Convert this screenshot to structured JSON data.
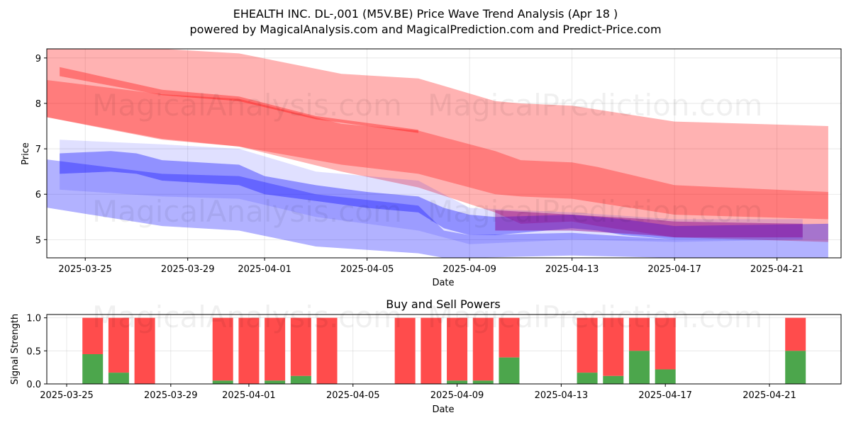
{
  "chart_data": [
    {
      "type": "area",
      "title": "EHEALTH INC.  DL-,001 (M5V.BE) Price Wave Trend Analysis (Apr 18 )",
      "subtitle": "powered by MagicalAnalysis.com and MagicalPrediction.com and Predict-Price.com",
      "xlabel": "Date",
      "ylabel": "Price",
      "xlim": [
        "2025-03-23T12:00",
        "2025-04-23T12:00"
      ],
      "ylim": [
        4.6,
        9.2
      ],
      "x_ticks": [
        "2025-03-25",
        "2025-03-29",
        "2025-04-01",
        "2025-04-05",
        "2025-04-09",
        "2025-04-13",
        "2025-04-17",
        "2025-04-21"
      ],
      "y_ticks": [
        5,
        6,
        7,
        8,
        9
      ],
      "grid": true,
      "series": [
        {
          "name": "red upper band",
          "color": "#ff0000",
          "x": [
            "2025-03-23",
            "2025-03-28",
            "2025-03-31",
            "2025-04-04",
            "2025-04-07",
            "2025-04-10",
            "2025-04-11",
            "2025-04-13",
            "2025-04-17",
            "2025-04-23"
          ],
          "low": [
            7.75,
            7.2,
            7.05,
            6.65,
            6.45,
            6.0,
            5.95,
            5.9,
            5.55,
            5.45
          ],
          "high": [
            9.25,
            9.2,
            9.1,
            8.65,
            8.55,
            8.05,
            8.0,
            7.95,
            7.6,
            7.5
          ]
        },
        {
          "name": "red lower band",
          "color": "#ff0000",
          "x": [
            "2025-03-23",
            "2025-03-28",
            "2025-03-31",
            "2025-04-04",
            "2025-04-07",
            "2025-04-10",
            "2025-04-11",
            "2025-04-13",
            "2025-04-14",
            "2025-04-17",
            "2025-04-23"
          ],
          "low": [
            7.75,
            7.22,
            7.05,
            6.5,
            6.15,
            5.6,
            5.35,
            5.4,
            5.3,
            5.05,
            4.95
          ],
          "high": [
            8.55,
            8.2,
            8.1,
            7.55,
            7.4,
            6.95,
            6.75,
            6.7,
            6.6,
            6.2,
            6.05
          ]
        },
        {
          "name": "red trend line",
          "color": "#ff0000",
          "x": [
            "2025-03-24",
            "2025-03-28",
            "2025-03-31",
            "2025-04-03",
            "2025-04-07"
          ],
          "low": [
            8.6,
            8.18,
            8.05,
            7.65,
            7.35
          ],
          "high": [
            8.8,
            8.3,
            8.15,
            7.72,
            7.42
          ]
        },
        {
          "name": "blue lower band",
          "color": "#0000ff",
          "x": [
            "2025-03-23",
            "2025-03-28",
            "2025-03-31",
            "2025-04-03",
            "2025-04-07",
            "2025-04-08",
            "2025-04-09",
            "2025-04-13",
            "2025-04-17",
            "2025-04-23"
          ],
          "low": [
            5.75,
            5.3,
            5.2,
            4.85,
            4.7,
            4.6,
            4.6,
            4.65,
            4.6,
            4.6
          ],
          "high": [
            6.8,
            6.45,
            6.4,
            6.0,
            5.75,
            5.2,
            5.1,
            5.15,
            5.0,
            5.0
          ]
        },
        {
          "name": "blue core band",
          "color": "#0000ff",
          "x": [
            "2025-03-24",
            "2025-03-26",
            "2025-03-27",
            "2025-03-28",
            "2025-03-31",
            "2025-04-01",
            "2025-04-03",
            "2025-04-05",
            "2025-04-07",
            "2025-04-08",
            "2025-04-09",
            "2025-04-10",
            "2025-04-13",
            "2025-04-14",
            "2025-04-15",
            "2025-04-17",
            "2025-04-23"
          ],
          "low": [
            6.45,
            6.5,
            6.45,
            6.3,
            6.2,
            6.0,
            5.85,
            5.7,
            5.6,
            5.25,
            5.1,
            5.1,
            5.25,
            5.2,
            5.1,
            5.0,
            5.0
          ],
          "high": [
            6.9,
            6.95,
            6.9,
            6.75,
            6.65,
            6.4,
            6.2,
            6.05,
            5.95,
            5.7,
            5.55,
            5.5,
            5.55,
            5.5,
            5.45,
            5.3,
            5.35
          ]
        },
        {
          "name": "blue upper band",
          "color": "#0000ff",
          "x": [
            "2025-03-24",
            "2025-03-28",
            "2025-03-31",
            "2025-04-03",
            "2025-04-07",
            "2025-04-09",
            "2025-04-13",
            "2025-04-17",
            "2025-04-22"
          ],
          "low": [
            6.1,
            5.95,
            5.9,
            5.5,
            5.2,
            4.9,
            5.0,
            4.95,
            5.0
          ],
          "high": [
            7.2,
            7.1,
            7.0,
            6.5,
            6.3,
            5.7,
            5.6,
            5.45,
            5.45
          ]
        },
        {
          "name": "purple convergence band",
          "color": "#8b008b",
          "x": [
            "2025-04-10",
            "2025-04-13",
            "2025-04-16",
            "2025-04-17",
            "2025-04-22"
          ],
          "low": [
            5.2,
            5.2,
            5.1,
            5.05,
            5.05
          ],
          "high": [
            5.65,
            5.55,
            5.45,
            5.4,
            5.35
          ]
        }
      ]
    },
    {
      "type": "bar",
      "title": "Buy and Sell Powers",
      "xlabel": "Date",
      "ylabel": "Signal Strength",
      "ylim": [
        0,
        1.05
      ],
      "y_ticks": [
        0.0,
        0.5,
        1.0
      ],
      "y_tick_labels": [
        "0.0",
        "0.5",
        "1.0"
      ],
      "x_ticks": [
        "2025-03-25",
        "2025-03-29",
        "2025-04-01",
        "2025-04-05",
        "2025-04-09",
        "2025-04-13",
        "2025-04-17",
        "2025-04-21"
      ],
      "stacked": true,
      "series": [
        {
          "name": "Buy",
          "color": "#4ca64c"
        },
        {
          "name": "Sell",
          "color": "#ff4c4c"
        }
      ],
      "bars": [
        {
          "date": "2025-03-26",
          "buy": 0.45
        },
        {
          "date": "2025-03-27",
          "buy": 0.17
        },
        {
          "date": "2025-03-28",
          "buy": 0.0
        },
        {
          "date": "2025-03-31",
          "buy": 0.05
        },
        {
          "date": "2025-04-01",
          "buy": 0.0
        },
        {
          "date": "2025-04-02",
          "buy": 0.05
        },
        {
          "date": "2025-04-03",
          "buy": 0.12
        },
        {
          "date": "2025-04-04",
          "buy": 0.0
        },
        {
          "date": "2025-04-07",
          "buy": 0.0
        },
        {
          "date": "2025-04-08",
          "buy": 0.0
        },
        {
          "date": "2025-04-09",
          "buy": 0.05
        },
        {
          "date": "2025-04-10",
          "buy": 0.05
        },
        {
          "date": "2025-04-11",
          "buy": 0.4
        },
        {
          "date": "2025-04-14",
          "buy": 0.17
        },
        {
          "date": "2025-04-15",
          "buy": 0.12
        },
        {
          "date": "2025-04-16",
          "buy": 0.5
        },
        {
          "date": "2025-04-17",
          "buy": 0.22
        },
        {
          "date": "2025-04-22",
          "buy": 0.5
        }
      ]
    }
  ],
  "watermarks": [
    "MagicalAnalysis.com",
    "MagicalPrediction.com"
  ]
}
